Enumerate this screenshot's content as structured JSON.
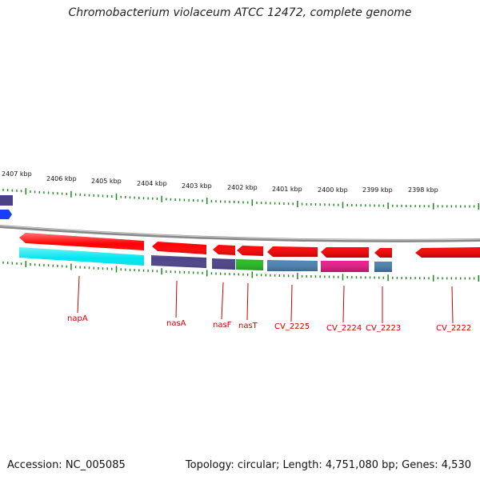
{
  "title": "Chromobacterium violaceum ATCC 12472, complete genome",
  "footer": {
    "accession": "Accession: NC_005085",
    "topology": "Topology: circular; Length: 4,751,080 bp; Genes: 4,530"
  },
  "colors": {
    "red": "#ff0000",
    "purple": "#4b4188",
    "cyan": "#00e6f0",
    "green": "#22bb22",
    "steelblue": "#4b84b4",
    "magenta": "#ee1a8a",
    "blue": "#1a3cff",
    "tick": "#1a8a1a",
    "label": "#cc0000"
  },
  "kbp_labels": [
    "2407 kbp",
    "2406 kbp",
    "2405 kbp",
    "2404 kbp",
    "2403 kbp",
    "2402 kbp",
    "2401 kbp",
    "2400 kbp",
    "2399 kbp",
    "2398 kbp"
  ],
  "gene_labels": [
    "napA",
    "nasA",
    "nasF",
    "nasT",
    "CV_2225",
    "CV_2224",
    "CV_2223",
    "CV_2222"
  ]
}
